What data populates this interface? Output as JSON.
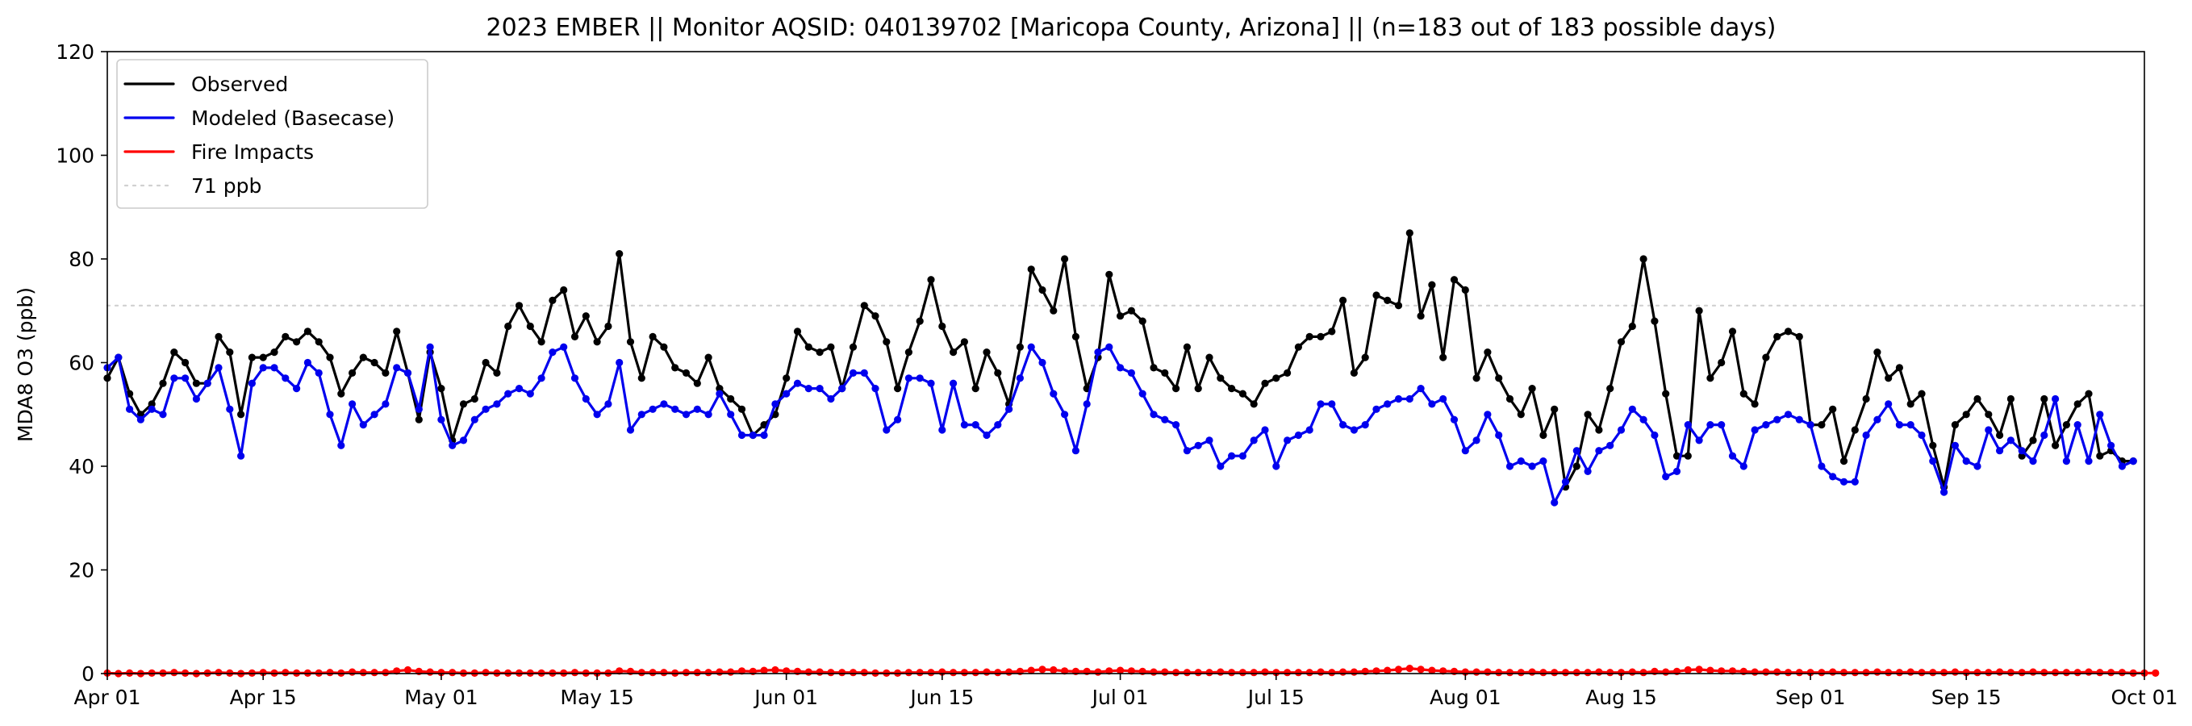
{
  "chart_data": {
    "type": "line",
    "title": "2023 EMBER || Monitor AQSID: 040139702 [Maricopa County, Arizona] || (n=183 out of 183 possible days)",
    "xlabel": "",
    "ylabel": "MDA8 O3 (ppb)",
    "xlim": [
      "2023-04-01",
      "2023-10-01"
    ],
    "ylim": [
      0,
      120
    ],
    "x_ticks": [
      "Apr 01",
      "Apr 15",
      "May 01",
      "May 15",
      "Jun 01",
      "Jun 15",
      "Jul 01",
      "Jul 15",
      "Aug 01",
      "Aug 15",
      "Sep 01",
      "Sep 15",
      "Oct 01"
    ],
    "y_ticks": [
      0,
      20,
      40,
      60,
      80,
      100,
      120
    ],
    "grid": false,
    "legend_position": "top-left",
    "threshold": {
      "name": "71 ppb",
      "value": 71,
      "color": "#d0d0d0"
    },
    "x_start_date": "2023-04-01",
    "series": [
      {
        "name": "Observed",
        "color": "#000000",
        "values": [
          57,
          61,
          54,
          50,
          52,
          56,
          62,
          60,
          56,
          56,
          65,
          62,
          50,
          61,
          61,
          62,
          65,
          64,
          66,
          64,
          61,
          54,
          58,
          61,
          60,
          58,
          66,
          58,
          49,
          62,
          55,
          45,
          52,
          53,
          60,
          58,
          67,
          71,
          67,
          64,
          72,
          74,
          65,
          69,
          64,
          67,
          81,
          64,
          57,
          65,
          63,
          59,
          58,
          56,
          61,
          55,
          53,
          51,
          46,
          48,
          50,
          57,
          66,
          63,
          62,
          63,
          55,
          63,
          71,
          69,
          64,
          55,
          62,
          68,
          76,
          67,
          62,
          64,
          55,
          62,
          58,
          52,
          63,
          78,
          74,
          70,
          80,
          65,
          55,
          61,
          77,
          69,
          70,
          68,
          59,
          58,
          55,
          63,
          55,
          61,
          57,
          55,
          54,
          52,
          56,
          57,
          58,
          63,
          65,
          65,
          66,
          72,
          58,
          61,
          73,
          72,
          71,
          85,
          69,
          75,
          61,
          76,
          74,
          57,
          62,
          57,
          53,
          50,
          55,
          46,
          51,
          36,
          40,
          50,
          47,
          55,
          64,
          67,
          80,
          68,
          54,
          42,
          42,
          70,
          57,
          60,
          66,
          54,
          52,
          61,
          65,
          66,
          65,
          48,
          48,
          51,
          41,
          47,
          53,
          62,
          57,
          59,
          52,
          54,
          44,
          36,
          48,
          50,
          53,
          50,
          46,
          53,
          42,
          45,
          53,
          44,
          48,
          52,
          54,
          42,
          43,
          41,
          41
        ]
      },
      {
        "name": "Modeled (Basecase)",
        "color": "#0000ee",
        "values": [
          59,
          61,
          51,
          49,
          51,
          50,
          57,
          57,
          53,
          56,
          59,
          51,
          42,
          56,
          59,
          59,
          57,
          55,
          60,
          58,
          50,
          44,
          52,
          48,
          50,
          52,
          59,
          58,
          51,
          63,
          49,
          44,
          45,
          49,
          51,
          52,
          54,
          55,
          54,
          57,
          62,
          63,
          57,
          53,
          50,
          52,
          60,
          47,
          50,
          51,
          52,
          51,
          50,
          51,
          50,
          54,
          50,
          46,
          46,
          46,
          52,
          54,
          56,
          55,
          55,
          53,
          55,
          58,
          58,
          55,
          47,
          49,
          57,
          57,
          56,
          47,
          56,
          48,
          48,
          46,
          48,
          51,
          57,
          63,
          60,
          54,
          50,
          43,
          52,
          62,
          63,
          59,
          58,
          54,
          50,
          49,
          48,
          43,
          44,
          45,
          40,
          42,
          42,
          45,
          47,
          40,
          45,
          46,
          47,
          52,
          52,
          48,
          47,
          48,
          51,
          52,
          53,
          53,
          55,
          52,
          53,
          49,
          43,
          45,
          50,
          46,
          40,
          41,
          40,
          41,
          33,
          37,
          43,
          39,
          43,
          44,
          47,
          51,
          49,
          46,
          38,
          39,
          48,
          45,
          48,
          48,
          42,
          40,
          47,
          48,
          49,
          50,
          49,
          48,
          40,
          38,
          37,
          37,
          46,
          49,
          52,
          48,
          48,
          46,
          41,
          35,
          44,
          41,
          40,
          47,
          43,
          45,
          43,
          41,
          46,
          53,
          41,
          48,
          41,
          50,
          44,
          40,
          41
        ]
      },
      {
        "name": "Fire Impacts",
        "color": "#ff0000",
        "values": [
          0.1,
          0,
          0.1,
          0,
          0.1,
          0.1,
          0.2,
          0.1,
          0,
          0.1,
          0.2,
          0.1,
          0,
          0.1,
          0.2,
          0.1,
          0.2,
          0.1,
          0.1,
          0.1,
          0.2,
          0.1,
          0.3,
          0.2,
          0.2,
          0.2,
          0.5,
          0.7,
          0.4,
          0.3,
          0.2,
          0.2,
          0.1,
          0.1,
          0.2,
          0.1,
          0.1,
          0.1,
          0.1,
          0.1,
          0.1,
          0.1,
          0.2,
          0.1,
          0.1,
          0.1,
          0.5,
          0.4,
          0.2,
          0.2,
          0.2,
          0.1,
          0.2,
          0.2,
          0.2,
          0.3,
          0.3,
          0.5,
          0.4,
          0.6,
          0.7,
          0.5,
          0.4,
          0.3,
          0.3,
          0.2,
          0.2,
          0.2,
          0.2,
          0.1,
          0.1,
          0.1,
          0.2,
          0.2,
          0.2,
          0.3,
          0.2,
          0.2,
          0.2,
          0.3,
          0.2,
          0.3,
          0.4,
          0.6,
          0.8,
          0.7,
          0.5,
          0.4,
          0.4,
          0.3,
          0.5,
          0.6,
          0.5,
          0.4,
          0.3,
          0.3,
          0.2,
          0.2,
          0.2,
          0.2,
          0.3,
          0.2,
          0.2,
          0.2,
          0.3,
          0.2,
          0.2,
          0.2,
          0.2,
          0.3,
          0.2,
          0.3,
          0.3,
          0.4,
          0.5,
          0.6,
          0.8,
          1.0,
          0.8,
          0.6,
          0.5,
          0.4,
          0.3,
          0.3,
          0.3,
          0.2,
          0.2,
          0.2,
          0.3,
          0.2,
          0.2,
          0.2,
          0.2,
          0.2,
          0.3,
          0.2,
          0.2,
          0.3,
          0.2,
          0.4,
          0.3,
          0.4,
          0.7,
          0.8,
          0.6,
          0.5,
          0.5,
          0.4,
          0.3,
          0.3,
          0.3,
          0.2,
          0.2,
          0.2,
          0.2,
          0.3,
          0.2,
          0.2,
          0.2,
          0.3,
          0.2,
          0.2,
          0.3,
          0.2,
          0.2,
          0.2,
          0.3,
          0.2,
          0.2,
          0.2,
          0.3,
          0.2,
          0.2,
          0.3,
          0.2,
          0.2,
          0.2,
          0.2,
          0.3,
          0.2,
          0.2,
          0.2,
          0.1,
          0.1,
          0.1
        ]
      }
    ]
  }
}
